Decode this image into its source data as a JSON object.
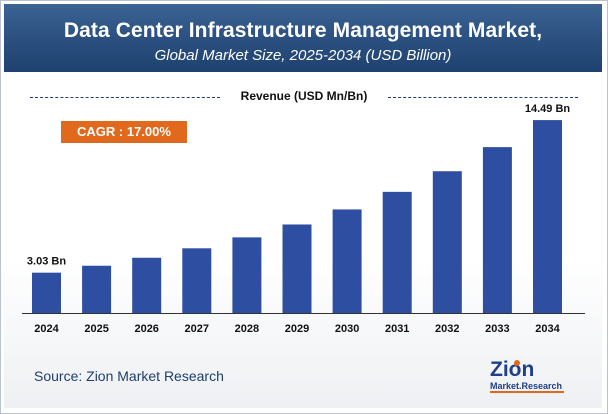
{
  "header": {
    "title": "Data Center Infrastructure Management Market,",
    "subtitle": "Global Market Size, 2025-2034 (USD Billion)"
  },
  "legend": {
    "label": "Revenue (USD Mn/Bn)"
  },
  "cagr": {
    "label": "CAGR : 17.00%"
  },
  "source": {
    "text": "Source: Zion Market Research"
  },
  "logo": {
    "text_top": "Zion",
    "text_bottom": "Market.Research"
  },
  "colors": {
    "bar": "#2e4fa1",
    "accent": "#e0691d",
    "header": "#2a4f7e"
  },
  "chart_data": {
    "type": "bar",
    "title": "Data Center Infrastructure Management Market, Global Market Size, 2025-2034 (USD Billion)",
    "xlabel": "",
    "ylabel": "Revenue (USD Mn/Bn)",
    "categories": [
      "2024",
      "2025",
      "2026",
      "2027",
      "2028",
      "2029",
      "2030",
      "2031",
      "2032",
      "2033",
      "2034"
    ],
    "values": [
      3.03,
      3.55,
      4.15,
      4.86,
      5.68,
      6.65,
      7.78,
      9.1,
      10.65,
      12.46,
      14.49
    ],
    "data_labels": [
      {
        "index": 0,
        "text": "3.03 Bn"
      },
      {
        "index": 10,
        "text": "14.49 Bn"
      }
    ],
    "ylim": [
      0,
      16
    ],
    "grid": false,
    "legend": "top-center"
  }
}
